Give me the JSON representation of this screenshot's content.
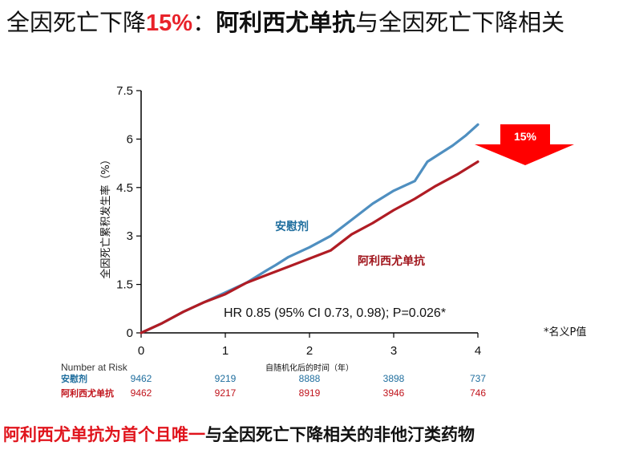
{
  "header": {
    "title_part1": "全因死亡下降",
    "title_percent": "15%",
    "title_colon": "：",
    "title_drug": "阿利西尤单抗",
    "title_part2": "与全因死亡下降相关"
  },
  "chart_data": {
    "type": "line",
    "ylabel": "全因死亡累积发生率（%）",
    "xlabel": "自随机化后的时间（年）",
    "xlim": [
      0,
      4
    ],
    "ylim": [
      0,
      7.5
    ],
    "x_ticks": [
      "0",
      "1",
      "2",
      "3",
      "4"
    ],
    "y_ticks": [
      "0",
      "1.5",
      "3",
      "4.5",
      "6",
      "7.5"
    ],
    "grid": false,
    "series": [
      {
        "name": "安慰剂",
        "color": "#4f8fc0",
        "label_color": "#1f6e9e",
        "x": [
          0,
          0.25,
          0.5,
          0.75,
          1.0,
          1.25,
          1.5,
          1.6,
          1.75,
          2.0,
          2.25,
          2.5,
          2.75,
          3.0,
          3.25,
          3.4,
          3.55,
          3.7,
          3.85,
          4.0
        ],
        "y": [
          0,
          0.3,
          0.65,
          0.95,
          1.25,
          1.55,
          1.95,
          2.1,
          2.35,
          2.65,
          3.0,
          3.5,
          4.0,
          4.4,
          4.7,
          5.3,
          5.55,
          5.8,
          6.1,
          6.45
        ]
      },
      {
        "name": "阿利西尤单抗",
        "color": "#b01c24",
        "label_color": "#a0151c",
        "x": [
          0,
          0.25,
          0.5,
          0.75,
          1.0,
          1.25,
          1.5,
          1.75,
          2.0,
          2.25,
          2.5,
          2.75,
          3.0,
          3.25,
          3.5,
          3.75,
          4.0
        ],
        "y": [
          0,
          0.3,
          0.65,
          0.95,
          1.2,
          1.55,
          1.8,
          2.05,
          2.3,
          2.55,
          3.05,
          3.4,
          3.8,
          4.15,
          4.55,
          4.9,
          5.3
        ]
      }
    ],
    "annotation": "HR 0.85 (95% CI 0.73, 0.98); P=0.026*",
    "arrow_label": "15%",
    "arrow_color": "#ff0000",
    "risk_table": {
      "title": "Number at Risk",
      "rows": [
        {
          "label": "安慰剂",
          "color": "#1f6e9e",
          "values": [
            "9462",
            "9219",
            "8888",
            "3898",
            "737"
          ]
        },
        {
          "label": "阿利西尤单抗",
          "color": "#c0141c",
          "values": [
            "9462",
            "9217",
            "8919",
            "3946",
            "746"
          ]
        }
      ]
    }
  },
  "footnote": "*名义P值",
  "banner": {
    "red_text": "阿利西尤单抗为首个且唯一",
    "black_text": "与全因死亡下降相关的非他汀类药物"
  }
}
